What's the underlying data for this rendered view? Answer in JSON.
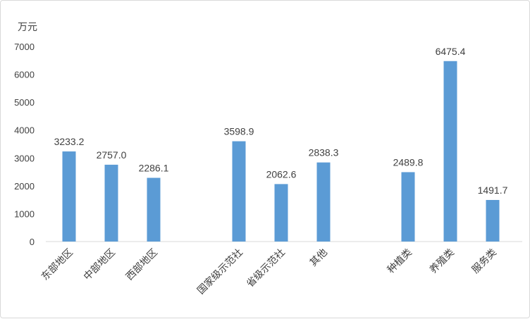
{
  "chart_data": {
    "type": "bar",
    "unit_label": "万元",
    "categories": [
      "东部地区",
      "中部地区",
      "西部地区",
      "国家级示范社",
      "省级示范社",
      "其他",
      "种植类",
      "养殖类",
      "服务类"
    ],
    "values": [
      3233.2,
      2757.0,
      2286.1,
      3598.9,
      2062.6,
      2838.3,
      2489.8,
      6475.4,
      1491.7
    ],
    "value_labels": [
      "3233.2",
      "2757.0",
      "2286.1",
      "3598.9",
      "2062.6",
      "2838.3",
      "2489.8",
      "6475.4",
      "1491.7"
    ],
    "groups": [
      [
        0,
        1,
        2
      ],
      [
        3,
        4,
        5
      ],
      [
        6,
        7,
        8
      ]
    ],
    "y_ticks": [
      "0",
      "1000",
      "2000",
      "3000",
      "4000",
      "5000",
      "6000",
      "7000"
    ],
    "ylim": [
      0,
      7000
    ],
    "bar_color": "#5b9bd5",
    "grid": false,
    "legend": "none"
  }
}
